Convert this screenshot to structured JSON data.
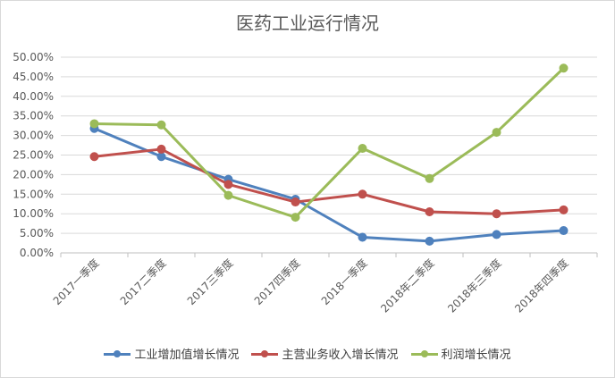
{
  "chart_data": {
    "type": "line",
    "title": "医药工业运行情况",
    "categories": [
      "2017一季度",
      "2017二季度",
      "2017三季度",
      "2017四季度",
      "2018一季度",
      "2018年二季度",
      "2018年三季度",
      "2018年四季度"
    ],
    "y_ticks": [
      "0.00%",
      "5.00%",
      "10.00%",
      "15.00%",
      "20.00%",
      "25.00%",
      "30.00%",
      "35.00%",
      "40.00%",
      "45.00%",
      "50.00%"
    ],
    "ylim": [
      0,
      50
    ],
    "grid": true,
    "legend_position": "bottom",
    "series": [
      {
        "name": "工业增加值增长情况",
        "color": "#4f81bd",
        "values": [
          31.8,
          24.6,
          18.8,
          13.7,
          4.0,
          3.0,
          4.7,
          5.7
        ]
      },
      {
        "name": "主营业务收入增长情况",
        "color": "#c0504d",
        "values": [
          24.6,
          26.5,
          17.5,
          13.0,
          15.0,
          10.5,
          10.0,
          11.0
        ]
      },
      {
        "name": "利润增长情况",
        "color": "#9bbb59",
        "values": [
          33.0,
          32.7,
          14.7,
          9.1,
          26.7,
          19.0,
          30.8,
          47.2
        ]
      }
    ]
  }
}
